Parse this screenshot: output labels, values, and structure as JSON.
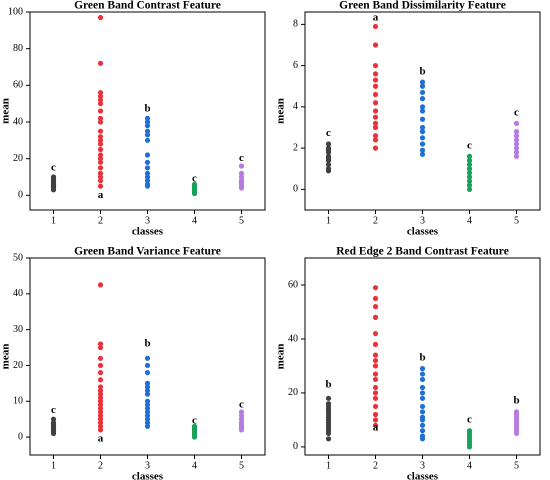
{
  "chart_data": [
    {
      "type": "strip",
      "title": "Green Band Contrast Feature",
      "xlabel": "classes",
      "ylabel": "mean",
      "xlim": [
        0.5,
        5.5
      ],
      "xticks": [
        1,
        2,
        3,
        4,
        5
      ],
      "ylim": [
        -8,
        100
      ],
      "yticks": [
        0,
        20,
        40,
        60,
        80,
        100
      ],
      "series": [
        {
          "x": 1,
          "color": "#404040",
          "values": [
            3,
            4,
            4,
            5,
            5,
            6,
            6,
            7,
            8,
            9,
            10
          ]
        },
        {
          "x": 2,
          "color": "#e8323c",
          "values": [
            97,
            72,
            56,
            54,
            52,
            50,
            46,
            42,
            40,
            35,
            32,
            30,
            28,
            25,
            22,
            20,
            18,
            15,
            12,
            10,
            8,
            5
          ]
        },
        {
          "x": 3,
          "color": "#1f6fd6",
          "values": [
            42,
            40,
            38,
            35,
            33,
            30,
            22,
            18,
            15,
            12,
            10,
            8,
            6,
            5
          ]
        },
        {
          "x": 4,
          "color": "#1aa05a",
          "values": [
            1,
            2,
            2,
            3,
            4,
            5,
            6
          ]
        },
        {
          "x": 5,
          "color": "#b57be0",
          "values": [
            4,
            5,
            6,
            7,
            8,
            10,
            12,
            16
          ]
        }
      ],
      "annotations": [
        {
          "text": "c",
          "x": 1,
          "y": 15
        },
        {
          "text": "a",
          "x": 2,
          "y": 0
        },
        {
          "text": "b",
          "x": 3,
          "y": 47
        },
        {
          "text": "c",
          "x": 4,
          "y": 9
        },
        {
          "text": "c",
          "x": 5,
          "y": 20
        }
      ]
    },
    {
      "type": "strip",
      "title": "Green Band Dissimilarity Feature",
      "xlabel": "classes",
      "ylabel": "mean",
      "xlim": [
        0.5,
        5.5
      ],
      "xticks": [
        1,
        2,
        3,
        4,
        5
      ],
      "ylim": [
        -1,
        8.6
      ],
      "yticks": [
        0,
        2,
        4,
        6,
        8
      ],
      "series": [
        {
          "x": 1,
          "color": "#404040",
          "values": [
            0.9,
            1.0,
            1.2,
            1.4,
            1.5,
            1.6,
            1.8,
            1.9,
            2.0,
            2.2
          ]
        },
        {
          "x": 2,
          "color": "#e8323c",
          "values": [
            7.9,
            7.0,
            6.0,
            5.6,
            5.3,
            5.0,
            4.6,
            4.2,
            3.8,
            3.5,
            3.2,
            3.0,
            2.6,
            2.4,
            2.0
          ]
        },
        {
          "x": 3,
          "color": "#1f6fd6",
          "values": [
            5.2,
            5.0,
            4.7,
            4.4,
            4.0,
            3.8,
            3.4,
            3.0,
            2.8,
            2.5,
            2.2,
            1.9,
            1.7
          ]
        },
        {
          "x": 4,
          "color": "#1aa05a",
          "values": [
            0.0,
            0.2,
            0.4,
            0.6,
            0.8,
            1.0,
            1.2,
            1.4,
            1.6
          ]
        },
        {
          "x": 5,
          "color": "#b57be0",
          "values": [
            1.6,
            1.8,
            2.0,
            2.2,
            2.4,
            2.6,
            2.8,
            3.2
          ]
        }
      ],
      "annotations": [
        {
          "text": "c",
          "x": 1,
          "y": 2.7
        },
        {
          "text": "a",
          "x": 2,
          "y": 8.3
        },
        {
          "text": "b",
          "x": 3,
          "y": 5.7
        },
        {
          "text": "c",
          "x": 4,
          "y": 2.1
        },
        {
          "text": "c",
          "x": 5,
          "y": 3.7
        }
      ]
    },
    {
      "type": "strip",
      "title": "Green Band Variance Feature",
      "xlabel": "classes",
      "ylabel": "mean",
      "xlim": [
        0.5,
        5.5
      ],
      "xticks": [
        1,
        2,
        3,
        4,
        5
      ],
      "ylim": [
        -5,
        50
      ],
      "yticks": [
        0,
        10,
        20,
        30,
        40,
        50
      ],
      "series": [
        {
          "x": 1,
          "color": "#404040",
          "values": [
            1,
            1.5,
            2,
            2.5,
            3,
            3.5,
            4,
            5
          ]
        },
        {
          "x": 2,
          "color": "#e8323c",
          "values": [
            42.5,
            26,
            25,
            22,
            20,
            18,
            16,
            14,
            13,
            12,
            11,
            10,
            9,
            8,
            7,
            6,
            5,
            4,
            3,
            2
          ]
        },
        {
          "x": 3,
          "color": "#1f6fd6",
          "values": [
            22,
            20,
            18,
            15,
            14,
            13,
            12,
            10,
            9,
            8,
            7,
            6,
            5,
            4,
            3
          ]
        },
        {
          "x": 4,
          "color": "#1aa05a",
          "values": [
            0,
            0.5,
            1,
            1.5,
            2,
            2.5,
            3
          ]
        },
        {
          "x": 5,
          "color": "#b57be0",
          "values": [
            2,
            2.5,
            3,
            3.5,
            4,
            5,
            6,
            7
          ]
        }
      ],
      "annotations": [
        {
          "text": "c",
          "x": 1,
          "y": 7.5
        },
        {
          "text": "a",
          "x": 2,
          "y": -0.5
        },
        {
          "text": "b",
          "x": 3,
          "y": 26
        },
        {
          "text": "c",
          "x": 4,
          "y": 4.5
        },
        {
          "text": "c",
          "x": 5,
          "y": 9
        }
      ]
    },
    {
      "type": "strip",
      "title": "Red Edge 2 Band Contrast Feature",
      "xlabel": "classes",
      "ylabel": "mean",
      "xlim": [
        0.5,
        5.5
      ],
      "xticks": [
        1,
        2,
        3,
        4,
        5
      ],
      "ylim": [
        -3,
        70
      ],
      "yticks": [
        0,
        20,
        40,
        60
      ],
      "series": [
        {
          "x": 1,
          "color": "#404040",
          "values": [
            3,
            5,
            6,
            7,
            8,
            9,
            10,
            11,
            12,
            13,
            14,
            15,
            16,
            18
          ]
        },
        {
          "x": 2,
          "color": "#e8323c",
          "values": [
            59,
            55,
            52,
            48,
            42,
            38,
            34,
            32,
            30,
            27,
            25,
            22,
            20,
            18,
            15,
            12,
            10,
            8
          ]
        },
        {
          "x": 3,
          "color": "#1f6fd6",
          "values": [
            29,
            27,
            25,
            22,
            20,
            18,
            15,
            13,
            11,
            10,
            8,
            6,
            4,
            3
          ]
        },
        {
          "x": 4,
          "color": "#1aa05a",
          "values": [
            0,
            1,
            2,
            3,
            4,
            5,
            6
          ]
        },
        {
          "x": 5,
          "color": "#b57be0",
          "values": [
            5,
            6,
            7,
            8,
            9,
            10,
            11,
            12,
            13
          ]
        }
      ],
      "annotations": [
        {
          "text": "b",
          "x": 1,
          "y": 23
        },
        {
          "text": "a",
          "x": 2,
          "y": 7
        },
        {
          "text": "b",
          "x": 3,
          "y": 33
        },
        {
          "text": "c",
          "x": 4,
          "y": 10
        },
        {
          "text": "b",
          "x": 5,
          "y": 17
        }
      ]
    }
  ]
}
